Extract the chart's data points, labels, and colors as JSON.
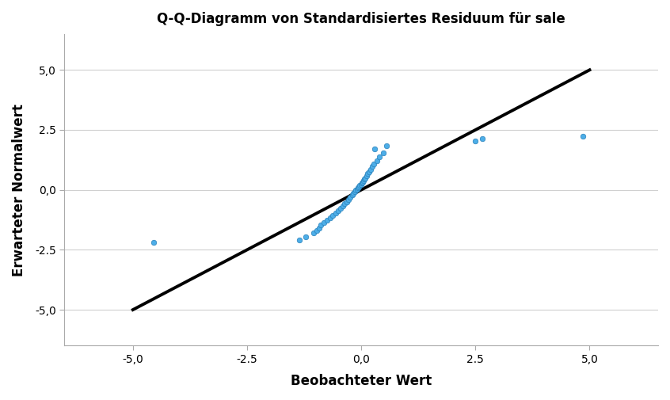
{
  "title": "Q-Q-Diagramm von Standardisiertes Residuum für sale",
  "xlabel": "Beobachteter Wert",
  "ylabel": "Erwarteter Normalwert",
  "xlim": [
    -6.5,
    6.5
  ],
  "ylim": [
    -6.5,
    6.5
  ],
  "xticks": [
    -5.0,
    -2.5,
    0.0,
    2.5,
    5.0
  ],
  "yticks": [
    -5.0,
    -2.5,
    0.0,
    2.5,
    5.0
  ],
  "line_color": "#000000",
  "line_width": 2.8,
  "dot_color": "#4daee8",
  "dot_edgecolor": "#2980b9",
  "dot_size": 22,
  "background_color": "#ffffff",
  "grid_color": "#d0d0d0",
  "scatter_x": [
    -4.55,
    -1.35,
    -1.22,
    -1.05,
    -0.98,
    -0.92,
    -0.88,
    -0.82,
    -0.75,
    -0.68,
    -0.62,
    -0.56,
    -0.5,
    -0.45,
    -0.4,
    -0.36,
    -0.32,
    -0.28,
    -0.24,
    -0.2,
    -0.17,
    -0.14,
    -0.12,
    -0.09,
    -0.07,
    -0.05,
    -0.03,
    -0.01,
    0.01,
    0.03,
    0.05,
    0.07,
    0.09,
    0.12,
    0.14,
    0.17,
    0.2,
    0.24,
    0.28,
    0.34,
    0.4,
    0.48,
    0.3,
    0.55,
    2.5,
    2.65,
    4.85
  ],
  "scatter_y": [
    -2.2,
    -2.1,
    -1.95,
    -1.8,
    -1.68,
    -1.58,
    -1.48,
    -1.38,
    -1.28,
    -1.18,
    -1.08,
    -0.98,
    -0.88,
    -0.78,
    -0.68,
    -0.58,
    -0.49,
    -0.4,
    -0.31,
    -0.22,
    -0.14,
    -0.07,
    -0.02,
    0.03,
    0.08,
    0.13,
    0.18,
    0.23,
    0.28,
    0.33,
    0.38,
    0.44,
    0.5,
    0.58,
    0.67,
    0.76,
    0.86,
    0.97,
    1.08,
    1.22,
    1.38,
    1.55,
    1.72,
    1.85,
    2.05,
    2.12,
    2.22
  ]
}
